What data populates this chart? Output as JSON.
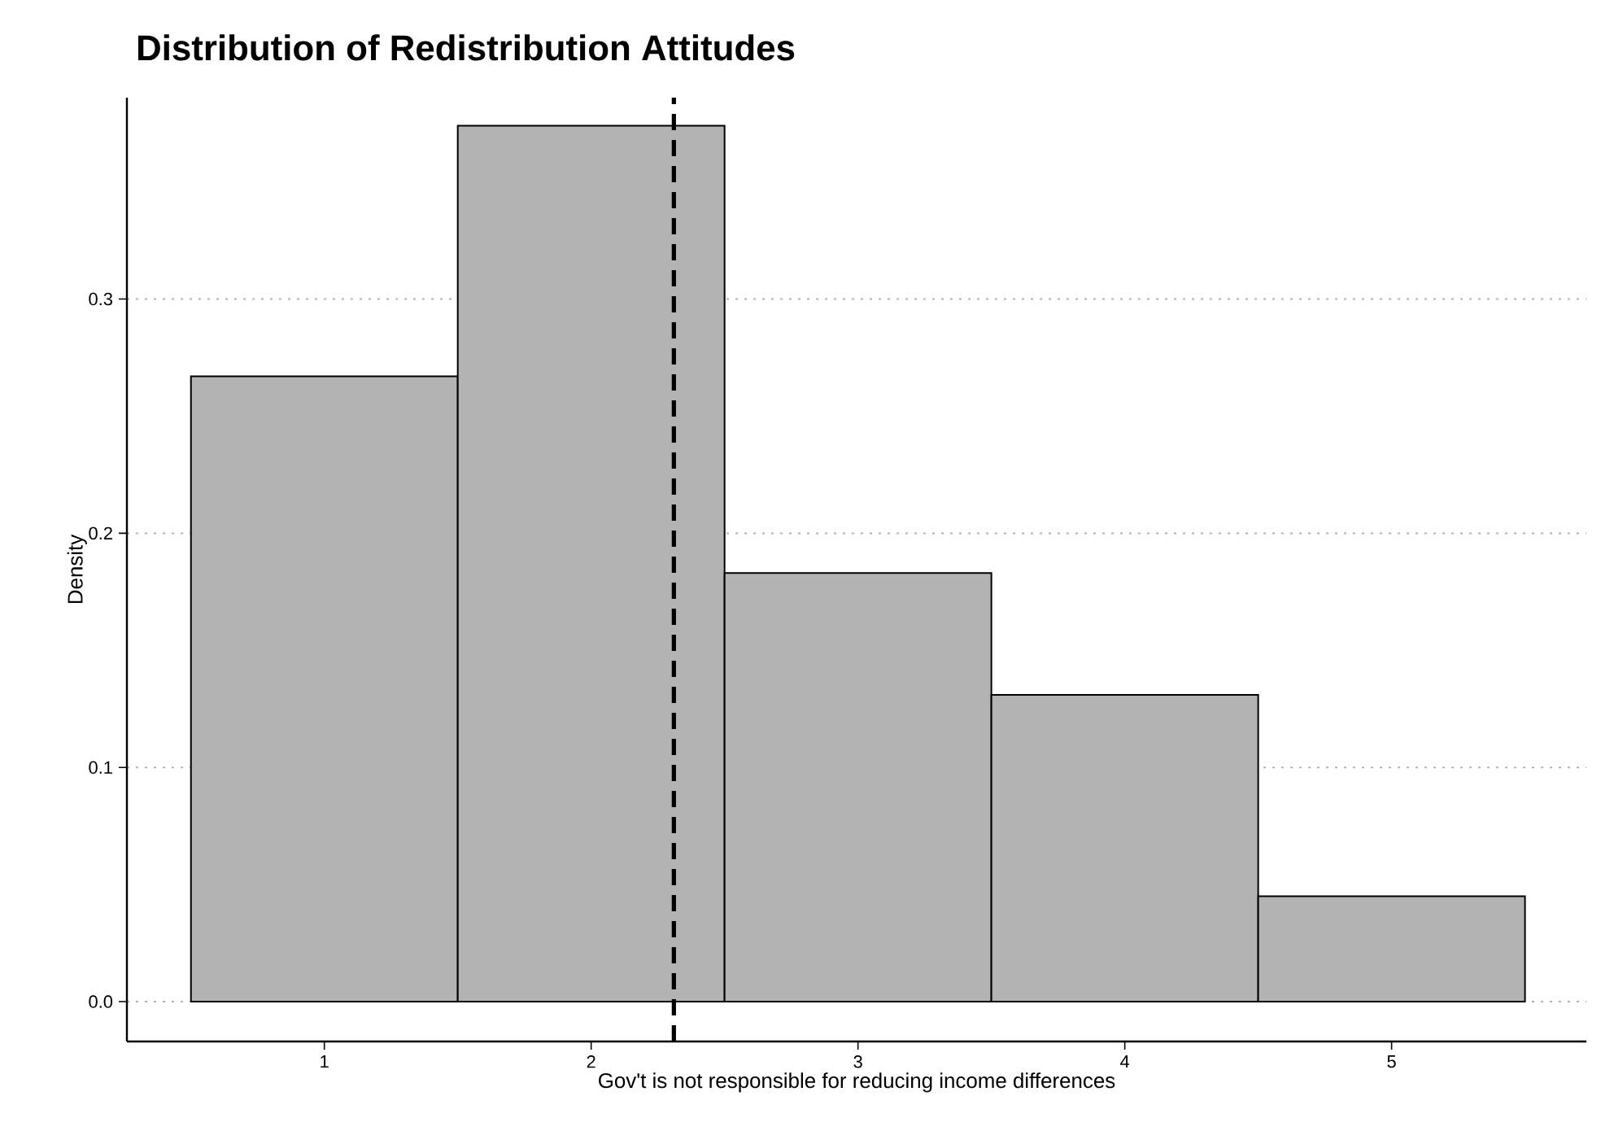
{
  "chart_data": {
    "type": "histogram",
    "title": "Distribution of Redistribution Attitudes",
    "xlabel": "Gov't is not responsible for reducing income differences",
    "ylabel": "Density",
    "bins": [
      0.5,
      1.5,
      2.5,
      3.5,
      4.5,
      5.5
    ],
    "values": [
      0.267,
      0.374,
      0.183,
      0.131,
      0.045
    ],
    "color": "#b3b3b3",
    "xlim": [
      0.26,
      5.73
    ],
    "ylim": [
      -0.017,
      0.386
    ],
    "xticks": [
      1,
      2,
      3,
      4,
      5
    ],
    "yticks": [
      {
        "value": 0,
        "label": "0.0"
      },
      {
        "value": 0.1,
        "label": "0.1"
      },
      {
        "value": 0.2,
        "label": "0.2"
      },
      {
        "value": 0.3,
        "label": "0.3"
      }
    ],
    "grid": "y",
    "ref_lines": [
      {
        "axis": "x",
        "value": 2.31,
        "color": "#000000",
        "line_style": "dashed"
      }
    ]
  }
}
